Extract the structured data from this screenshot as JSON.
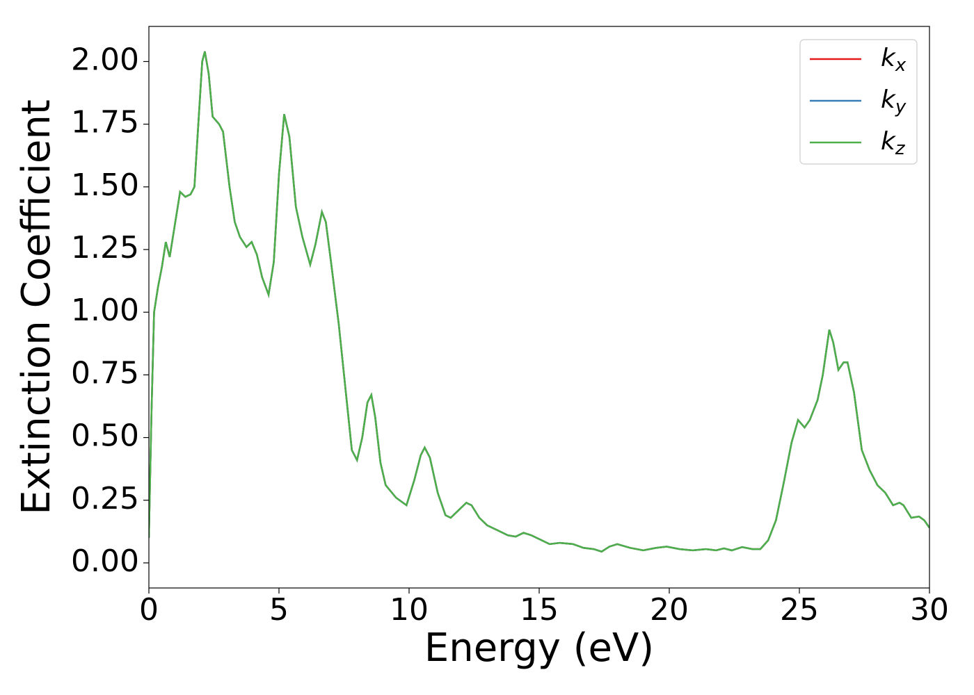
{
  "chart_data": {
    "type": "line",
    "xlabel": "Energy (eV)",
    "ylabel": "Extinction Coefficient",
    "x": [
      0,
      0.1,
      0.2,
      0.35,
      0.5,
      0.65,
      0.8,
      1.0,
      1.2,
      1.4,
      1.6,
      1.75,
      1.9,
      2.05,
      2.15,
      2.3,
      2.45,
      2.7,
      2.85,
      3.1,
      3.3,
      3.5,
      3.75,
      3.95,
      4.15,
      4.35,
      4.6,
      4.8,
      5.0,
      5.2,
      5.4,
      5.65,
      5.9,
      6.2,
      6.4,
      6.65,
      6.8,
      7.0,
      7.3,
      7.6,
      7.8,
      8.0,
      8.2,
      8.4,
      8.55,
      8.7,
      8.9,
      9.1,
      9.5,
      9.9,
      10.2,
      10.45,
      10.6,
      10.8,
      11.1,
      11.4,
      11.6,
      11.9,
      12.2,
      12.4,
      12.7,
      13.0,
      13.4,
      13.8,
      14.1,
      14.4,
      14.7,
      15.0,
      15.4,
      15.8,
      16.3,
      16.7,
      17.1,
      17.4,
      17.7,
      18.0,
      18.5,
      19.0,
      19.5,
      19.9,
      20.4,
      20.9,
      21.4,
      21.8,
      22.1,
      22.4,
      22.8,
      23.2,
      23.5,
      23.8,
      24.1,
      24.4,
      24.7,
      24.95,
      25.2,
      25.4,
      25.7,
      25.9,
      26.15,
      26.3,
      26.5,
      26.7,
      26.85,
      27.1,
      27.4,
      27.7,
      28.0,
      28.3,
      28.6,
      28.85,
      29.0,
      29.3,
      29.6,
      29.8,
      30.0
    ],
    "series": [
      {
        "name": "kx",
        "color": "#e41a1c",
        "values": [
          0.1,
          0.6,
          1.0,
          1.1,
          1.18,
          1.28,
          1.22,
          1.35,
          1.48,
          1.46,
          1.47,
          1.5,
          1.75,
          2.0,
          2.04,
          1.95,
          1.78,
          1.75,
          1.72,
          1.5,
          1.36,
          1.3,
          1.26,
          1.28,
          1.23,
          1.14,
          1.07,
          1.2,
          1.55,
          1.79,
          1.7,
          1.42,
          1.3,
          1.19,
          1.27,
          1.4,
          1.36,
          1.2,
          0.95,
          0.65,
          0.45,
          0.41,
          0.5,
          0.64,
          0.67,
          0.58,
          0.4,
          0.31,
          0.26,
          0.23,
          0.33,
          0.43,
          0.46,
          0.42,
          0.28,
          0.19,
          0.18,
          0.21,
          0.24,
          0.23,
          0.18,
          0.15,
          0.13,
          0.11,
          0.105,
          0.12,
          0.11,
          0.095,
          0.075,
          0.08,
          0.075,
          0.06,
          0.055,
          0.045,
          0.065,
          0.075,
          0.06,
          0.05,
          0.06,
          0.065,
          0.055,
          0.05,
          0.055,
          0.05,
          0.058,
          0.05,
          0.063,
          0.055,
          0.055,
          0.09,
          0.17,
          0.32,
          0.48,
          0.57,
          0.54,
          0.57,
          0.65,
          0.75,
          0.93,
          0.88,
          0.77,
          0.8,
          0.8,
          0.68,
          0.45,
          0.37,
          0.31,
          0.28,
          0.23,
          0.24,
          0.23,
          0.18,
          0.185,
          0.17,
          0.14
        ]
      },
      {
        "name": "ky",
        "color": "#377eb8",
        "values": [
          0.1,
          0.6,
          1.0,
          1.1,
          1.18,
          1.28,
          1.22,
          1.35,
          1.48,
          1.46,
          1.47,
          1.5,
          1.75,
          2.0,
          2.04,
          1.95,
          1.78,
          1.75,
          1.72,
          1.5,
          1.36,
          1.3,
          1.26,
          1.28,
          1.23,
          1.14,
          1.07,
          1.2,
          1.55,
          1.79,
          1.7,
          1.42,
          1.3,
          1.19,
          1.27,
          1.4,
          1.36,
          1.2,
          0.95,
          0.65,
          0.45,
          0.41,
          0.5,
          0.64,
          0.67,
          0.58,
          0.4,
          0.31,
          0.26,
          0.23,
          0.33,
          0.43,
          0.46,
          0.42,
          0.28,
          0.19,
          0.18,
          0.21,
          0.24,
          0.23,
          0.18,
          0.15,
          0.13,
          0.11,
          0.105,
          0.12,
          0.11,
          0.095,
          0.075,
          0.08,
          0.075,
          0.06,
          0.055,
          0.045,
          0.065,
          0.075,
          0.06,
          0.05,
          0.06,
          0.065,
          0.055,
          0.05,
          0.055,
          0.05,
          0.058,
          0.05,
          0.063,
          0.055,
          0.055,
          0.09,
          0.17,
          0.32,
          0.48,
          0.57,
          0.54,
          0.57,
          0.65,
          0.75,
          0.93,
          0.88,
          0.77,
          0.8,
          0.8,
          0.68,
          0.45,
          0.37,
          0.31,
          0.28,
          0.23,
          0.24,
          0.23,
          0.18,
          0.185,
          0.17,
          0.14
        ]
      },
      {
        "name": "kz",
        "color": "#4daf4a",
        "values": [
          0.1,
          0.6,
          1.0,
          1.1,
          1.18,
          1.28,
          1.22,
          1.35,
          1.48,
          1.46,
          1.47,
          1.5,
          1.75,
          2.0,
          2.04,
          1.95,
          1.78,
          1.75,
          1.72,
          1.5,
          1.36,
          1.3,
          1.26,
          1.28,
          1.23,
          1.14,
          1.07,
          1.2,
          1.55,
          1.79,
          1.7,
          1.42,
          1.3,
          1.19,
          1.27,
          1.4,
          1.36,
          1.2,
          0.95,
          0.65,
          0.45,
          0.41,
          0.5,
          0.64,
          0.67,
          0.58,
          0.4,
          0.31,
          0.26,
          0.23,
          0.33,
          0.43,
          0.46,
          0.42,
          0.28,
          0.19,
          0.18,
          0.21,
          0.24,
          0.23,
          0.18,
          0.15,
          0.13,
          0.11,
          0.105,
          0.12,
          0.11,
          0.095,
          0.075,
          0.08,
          0.075,
          0.06,
          0.055,
          0.045,
          0.065,
          0.075,
          0.06,
          0.05,
          0.06,
          0.065,
          0.055,
          0.05,
          0.055,
          0.05,
          0.058,
          0.05,
          0.063,
          0.055,
          0.055,
          0.09,
          0.17,
          0.32,
          0.48,
          0.57,
          0.54,
          0.57,
          0.65,
          0.75,
          0.93,
          0.88,
          0.77,
          0.8,
          0.8,
          0.68,
          0.45,
          0.37,
          0.31,
          0.28,
          0.23,
          0.24,
          0.23,
          0.18,
          0.185,
          0.17,
          0.14
        ]
      }
    ],
    "xlim": [
      0,
      30
    ],
    "xticks": [
      0,
      5,
      10,
      15,
      20,
      25,
      30
    ],
    "ylim": [
      -0.1,
      2.14
    ],
    "yticks": [
      {
        "value": 0,
        "label": "0.00"
      },
      {
        "value": 0.25,
        "label": "0.25"
      },
      {
        "value": 0.5,
        "label": "0.50"
      },
      {
        "value": 0.75,
        "label": "0.75"
      },
      {
        "value": 1,
        "label": "1.00"
      },
      {
        "value": 1.25,
        "label": "1.25"
      },
      {
        "value": 1.5,
        "label": "1.50"
      },
      {
        "value": 1.75,
        "label": "1.75"
      },
      {
        "value": 2,
        "label": "2.00"
      }
    ],
    "legend": "upper right"
  }
}
